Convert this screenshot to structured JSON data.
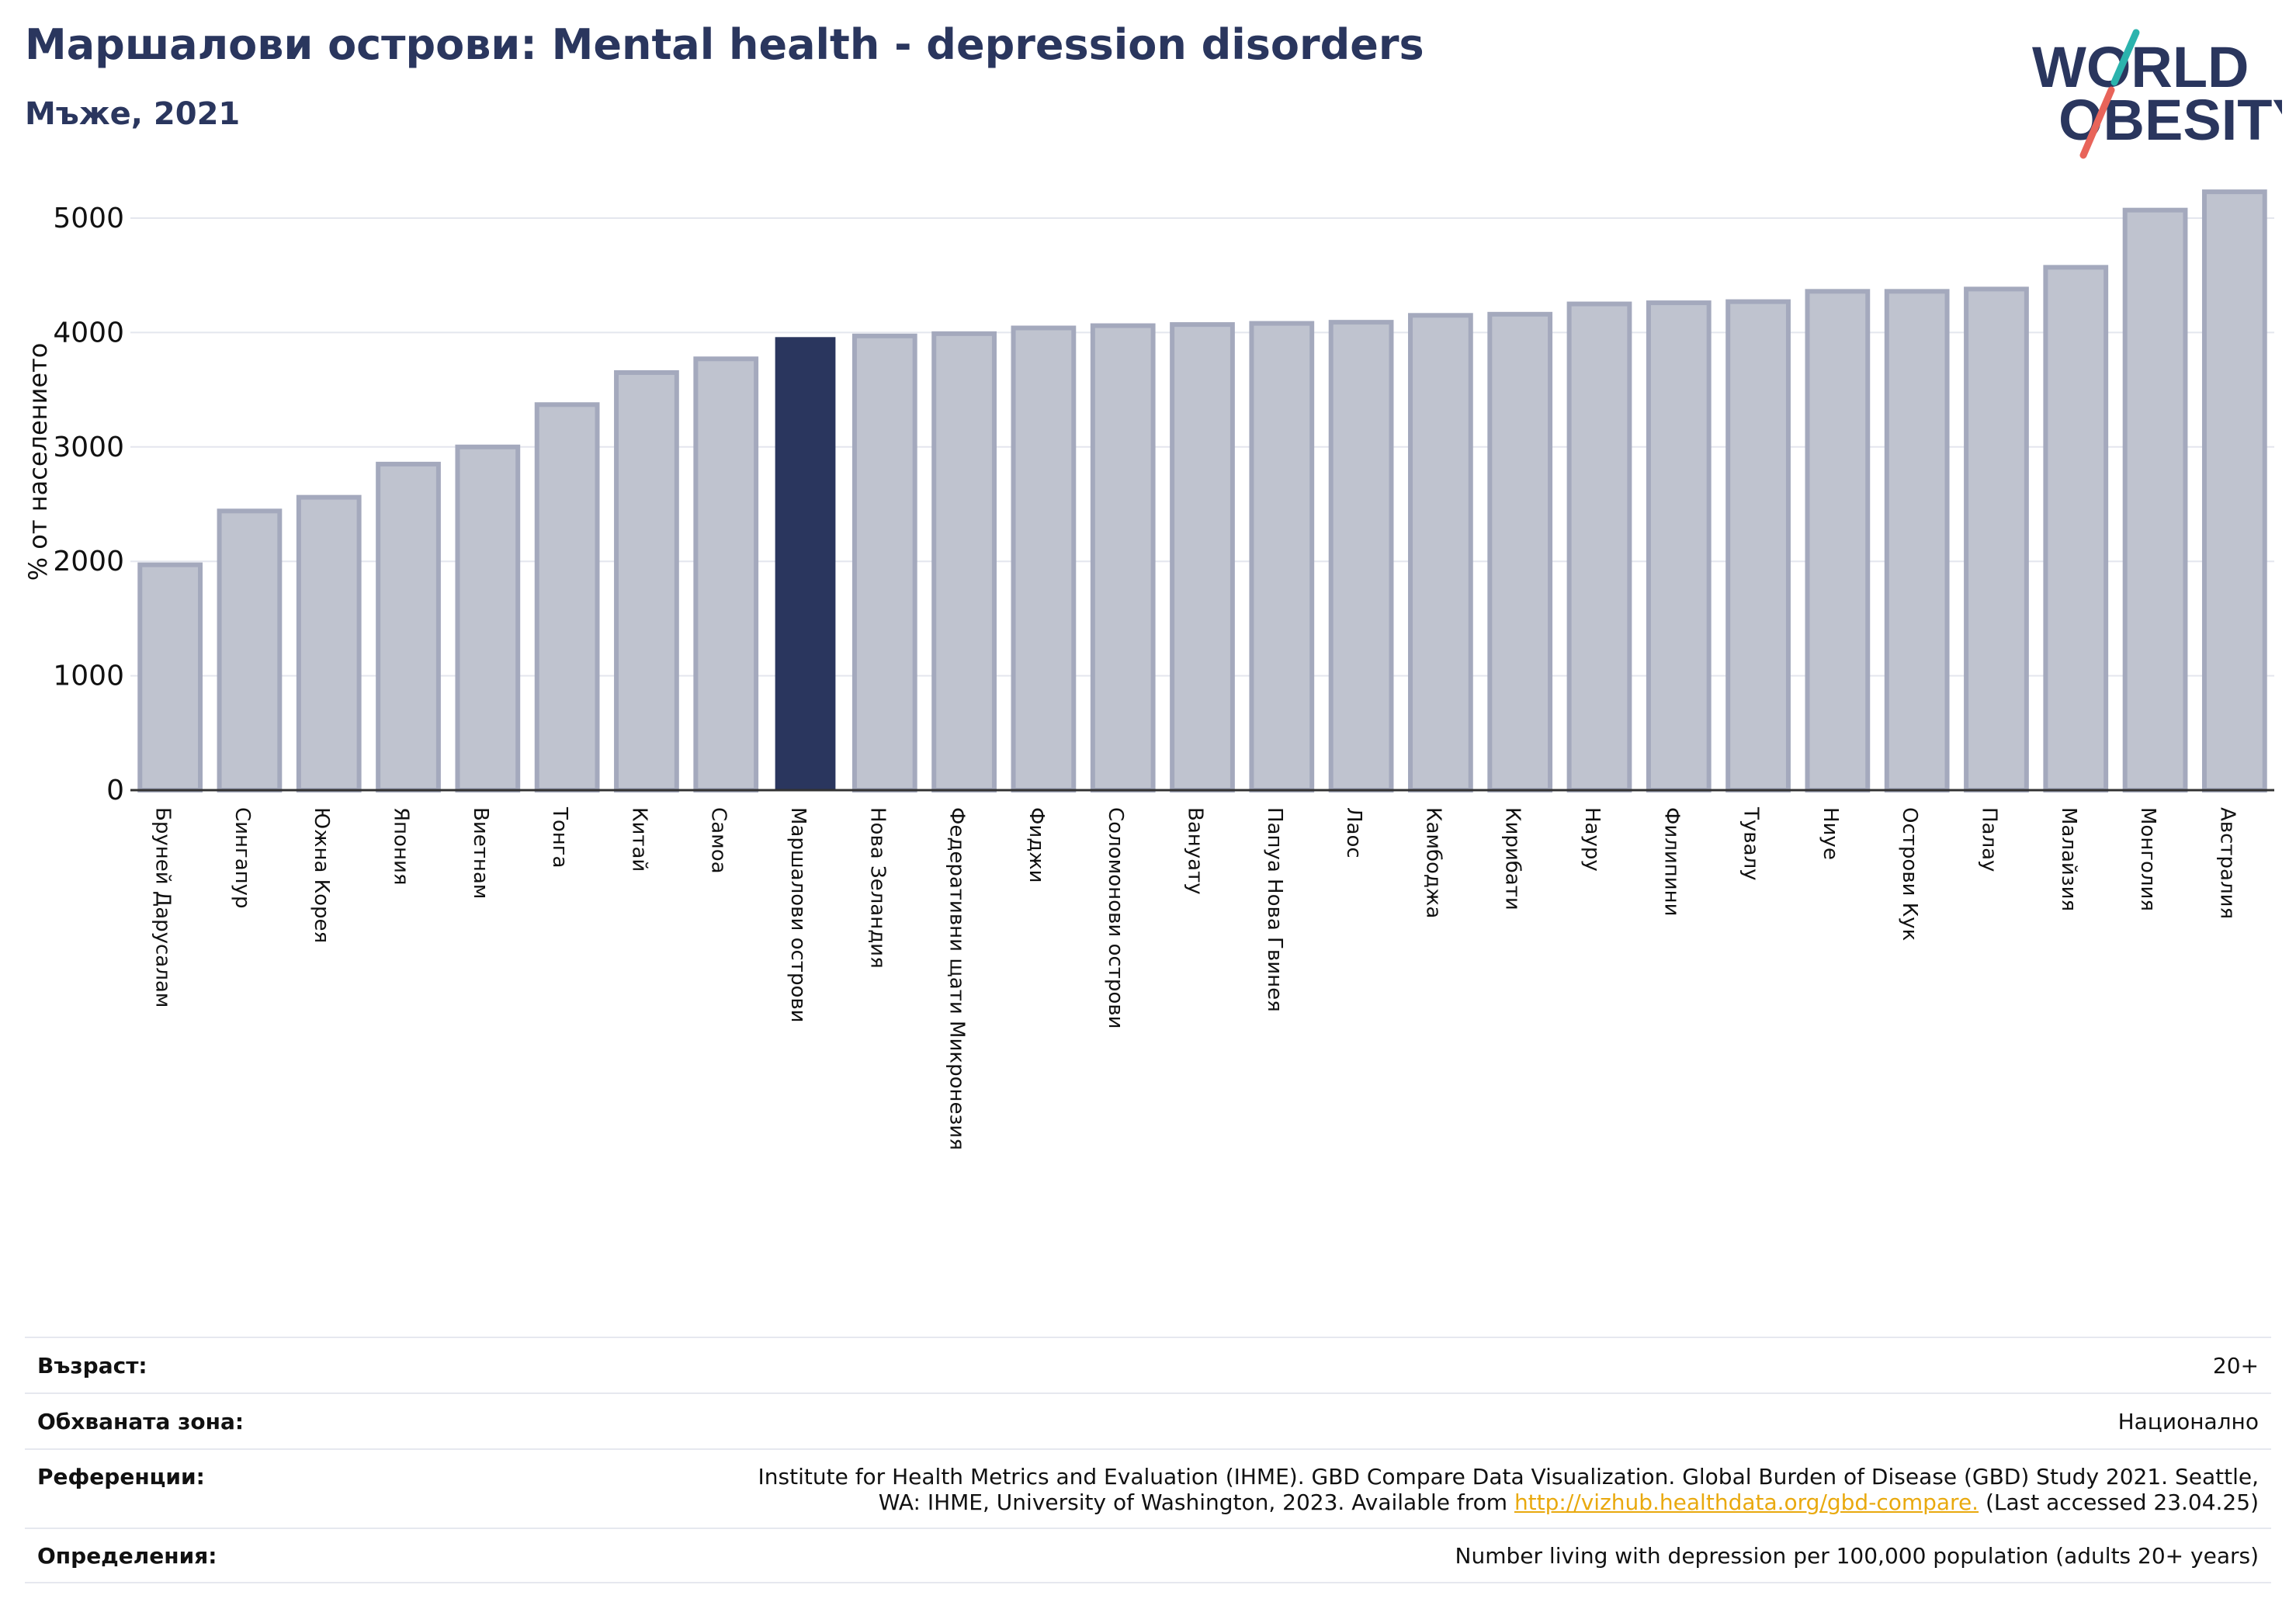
{
  "header": {
    "title": "Маршалови острови: Mental health - depression disorders",
    "subtitle": "Мъже, 2021"
  },
  "logo": {
    "line1": "WORLD",
    "line2": "OBESITY"
  },
  "colors": {
    "bar": "#bfc3cf",
    "bar_edge": "#a4a9bd",
    "highlight": "#2a365e",
    "text": "#2a365e",
    "link": "#e9a90e",
    "logo_teal": "#2bb3ad",
    "logo_coral": "#e8645a"
  },
  "chart_data": {
    "type": "bar",
    "ylabel": "% от населението",
    "ylim": [
      0,
      5400
    ],
    "yticks": [
      0,
      1000,
      2000,
      3000,
      4000,
      5000
    ],
    "highlight": "Маршалови острови",
    "categories": [
      "Бруней Дарусалам",
      "Сингапур",
      "Южна Корея",
      "Япония",
      "Виетнам",
      "Тонга",
      "Китай",
      "Самоа",
      "Маршалови острови",
      "Нова Зеландия",
      "Федеративни щати Микронезия",
      "Фиджи",
      "Соломонови острови",
      "Вануату",
      "Папуа Нова Гвинея",
      "Лаос",
      "Камбоджа",
      "Кирибати",
      "Науру",
      "Филипини",
      "Тувалу",
      "Ниуе",
      "Острови Кук",
      "Палау",
      "Малайзия",
      "Монголия",
      "Австралия"
    ],
    "values": [
      1970,
      2440,
      2560,
      2850,
      3000,
      3370,
      3650,
      3770,
      3960,
      3970,
      3990,
      4040,
      4060,
      4070,
      4080,
      4090,
      4150,
      4160,
      4250,
      4260,
      4270,
      4360,
      4360,
      4380,
      4570,
      5070,
      5230
    ]
  },
  "info": {
    "age_label": "Възраст:",
    "age_value": "20+",
    "area_label": "Обхваната зона:",
    "area_value": "Национално",
    "ref_label": "Референции:",
    "ref_line1": "Institute for Health Metrics and Evaluation (IHME). GBD Compare Data Visualization. Global Burden of Disease (GBD) Study 2021. Seattle,",
    "ref_line2_pre": "WA: IHME, University of Washington, 2023. Available from ",
    "ref_link": "http://vizhub.healthdata.org/gbd-compare.",
    "ref_line2_post": " (Last accessed 23.04.25)",
    "def_label": "Определения:",
    "def_value": "Number living with depression per 100,000 population (adults 20+ years)"
  }
}
